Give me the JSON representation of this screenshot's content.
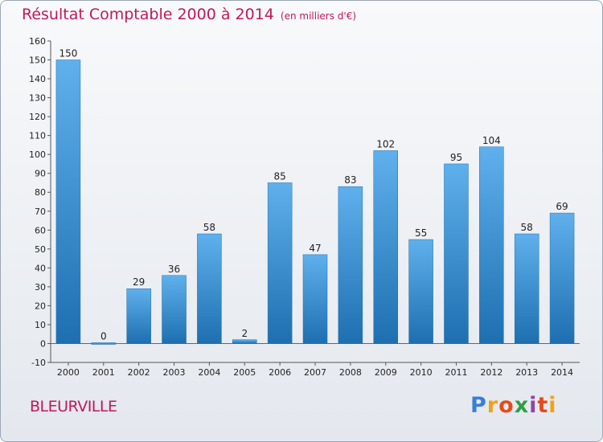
{
  "title": "Résultat Comptable 2000 à 2014",
  "subtitle": "(en milliers d'€)",
  "city": "BLEURVILLE",
  "logo": {
    "letters": [
      "P",
      "r",
      "o",
      "x",
      "i",
      "t",
      "i"
    ],
    "colors": [
      "#3a7fd5",
      "#f2a114",
      "#e64a19",
      "#2e9e45",
      "#8e44ad",
      "#e64a19",
      "#f2a114"
    ]
  },
  "colors": {
    "bar_dark": "#1e6fb0",
    "bar_light": "#5fb0ec",
    "title": "#c2185b"
  },
  "chart_data": {
    "type": "bar",
    "categories": [
      "2000",
      "2001",
      "2002",
      "2003",
      "2004",
      "2005",
      "2006",
      "2007",
      "2008",
      "2009",
      "2010",
      "2011",
      "2012",
      "2013",
      "2014"
    ],
    "values": [
      150,
      0,
      29,
      36,
      58,
      2,
      85,
      47,
      83,
      102,
      55,
      95,
      104,
      58,
      69
    ],
    "ylim": [
      -10,
      160
    ],
    "yticks": [
      -10,
      0,
      10,
      20,
      30,
      40,
      50,
      60,
      70,
      80,
      90,
      100,
      110,
      120,
      130,
      140,
      150,
      160
    ],
    "grid": false
  }
}
